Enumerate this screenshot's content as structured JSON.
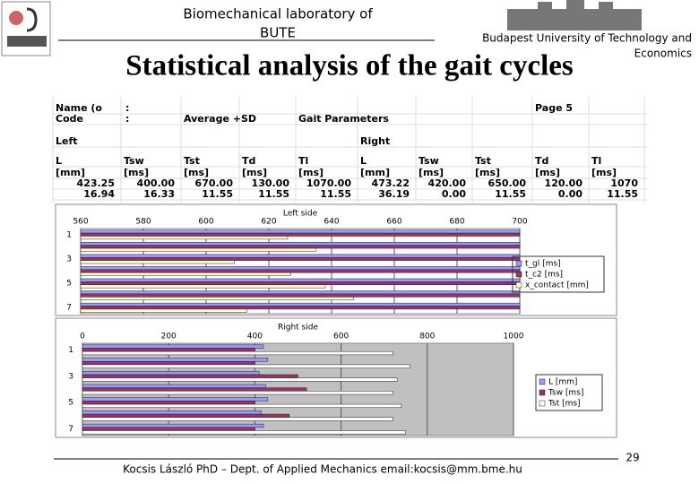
{
  "header": {
    "lab": "Biomechanical laboratory of",
    "lab_short": "BUTE",
    "university_line1": "Budapest University of Technology and",
    "university_line2": "Economics",
    "title": "Statistical analysis of the gait cycles"
  },
  "table": {
    "rows": [
      [
        "Name (o",
        ":",
        "Page 5"
      ],
      [
        "Code",
        ":",
        "Average +SD",
        "Gait Parameters"
      ],
      [
        "Left",
        "Right"
      ],
      [
        "L",
        "Tsw",
        "Tst",
        "Td",
        "Tl",
        "L",
        "Tsw",
        "Tst",
        "Td",
        "Tl"
      ],
      [
        "[mm]",
        "[ms]",
        "[ms]",
        "[ms]",
        "[ms]",
        "[mm]",
        "[ms]",
        "[ms]",
        "[ms]",
        "[ms]"
      ],
      [
        "423.25",
        "400.00",
        "670.00",
        "130.00",
        "1070.00",
        "473.22",
        "420.00",
        "650.00",
        "120.00",
        "1070"
      ],
      [
        "16.94",
        "16.33",
        "11.55",
        "11.55",
        "11.55",
        "36.19",
        "0.00",
        "11.55",
        "0.00",
        "11.55"
      ]
    ]
  },
  "left_chart": {
    "type": "bar",
    "title": "Left side",
    "categories": [
      "1",
      null,
      "3",
      null,
      "5",
      null,
      "7"
    ],
    "xlim": [
      560,
      700
    ],
    "xticks": [
      560,
      580,
      600,
      620,
      640,
      660,
      680,
      700
    ],
    "series": [
      {
        "name": "t_gl [ms]",
        "color": "#9999ff",
        "values": [
          700,
          700,
          700,
          700,
          700,
          700,
          700
        ]
      },
      {
        "name": "t_c2 [ms]",
        "color": "#993366",
        "values": [
          700,
          700,
          700,
          700,
          700,
          700,
          700
        ]
      },
      {
        "name": "x_contact [mm]",
        "color": "#ffffcc",
        "values": [
          626,
          635,
          609,
          627,
          638,
          647,
          613
        ]
      }
    ]
  },
  "right_chart": {
    "type": "bar",
    "title": "Right side",
    "categories": [
      "1",
      null,
      "3",
      null,
      "5",
      null,
      "7"
    ],
    "xlim": [
      0,
      1000
    ],
    "xticks": [
      0,
      200,
      400,
      600,
      800,
      1000
    ],
    "series": [
      {
        "name": "L [mm]",
        "color": "#9999ff",
        "values": [
          420,
          430,
          410,
          425,
          430,
          415,
          420
        ]
      },
      {
        "name": "Tsw [ms]",
        "color": "#993366",
        "values": [
          400,
          400,
          500,
          520,
          400,
          480,
          400
        ]
      },
      {
        "name": "Tst [ms]",
        "color": "#ffffff",
        "values": [
          720,
          760,
          730,
          720,
          740,
          720,
          750
        ]
      }
    ]
  },
  "footer": {
    "author": "Kocsis László PhD – Dept. of Applied Mechanics  email:kocsis@mm.bme.hu",
    "page": "29"
  }
}
